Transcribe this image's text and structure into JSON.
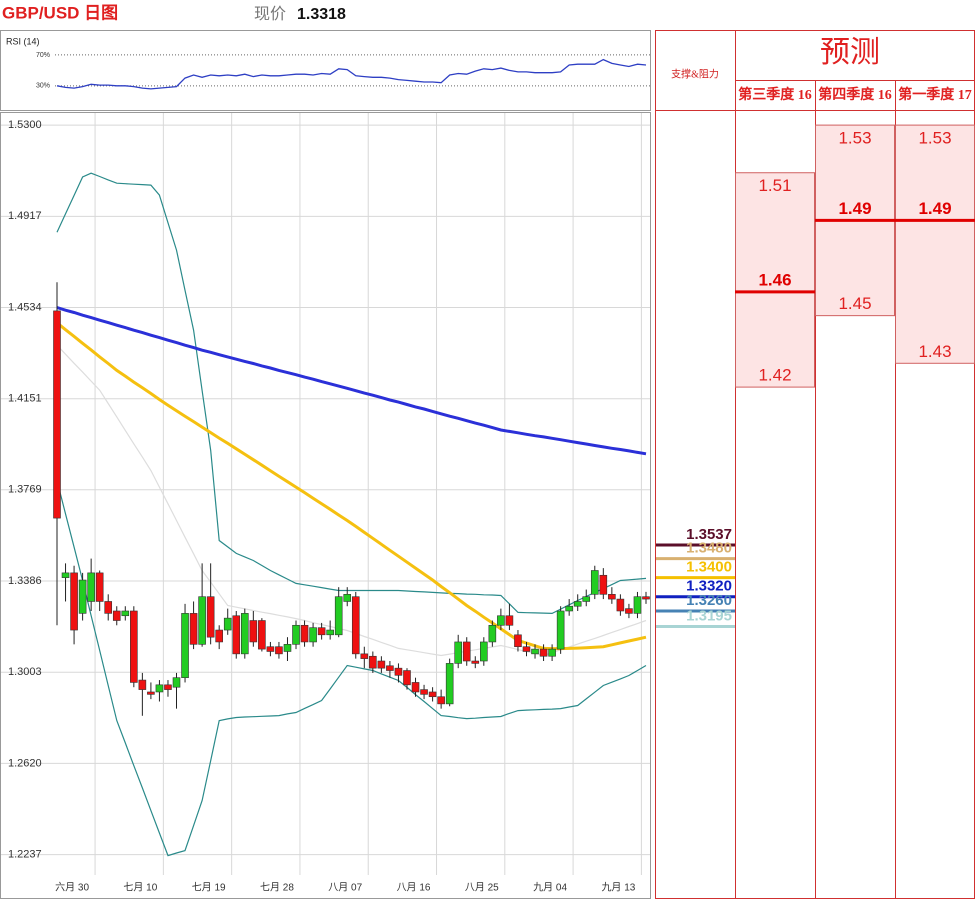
{
  "header": {
    "pair": "GBP/USD 日图",
    "price_label": "现价",
    "price": 1.3318
  },
  "chart_data": [
    {
      "type": "candlestick",
      "categories": [
        null,
        null,
        "六月 30",
        null,
        null,
        null,
        null,
        null,
        null,
        null,
        "七月 10",
        null,
        null,
        null,
        null,
        null,
        null,
        null,
        "七月 19",
        null,
        null,
        null,
        null,
        null,
        null,
        null,
        "七月 28",
        null,
        null,
        null,
        null,
        null,
        null,
        null,
        "八月 07",
        null,
        null,
        null,
        null,
        null,
        null,
        null,
        "八月 16",
        null,
        null,
        null,
        null,
        null,
        null,
        null,
        "八月 25",
        null,
        null,
        null,
        null,
        null,
        null,
        null,
        "九月 04",
        null,
        null,
        null,
        null,
        null,
        null,
        null,
        "九月 13",
        null,
        null,
        null
      ],
      "open": [
        1.452,
        1.34,
        1.342,
        1.325,
        1.33,
        1.342,
        1.33,
        1.326,
        1.324,
        1.326,
        1.297,
        1.292,
        1.292,
        1.295,
        1.294,
        1.298,
        1.325,
        1.312,
        1.332,
        1.318,
        1.318,
        1.324,
        1.308,
        1.322,
        1.322,
        1.311,
        1.311,
        1.309,
        1.312,
        1.32,
        1.313,
        1.319,
        1.316,
        1.316,
        1.33,
        1.332,
        1.308,
        1.307,
        1.305,
        1.303,
        1.302,
        1.301,
        1.296,
        1.293,
        1.292,
        1.29,
        1.287,
        1.304,
        1.313,
        1.305,
        1.305,
        1.313,
        1.32,
        1.324,
        1.316,
        1.311,
        1.308,
        1.31,
        1.307,
        1.31,
        1.326,
        1.328,
        1.33,
        1.333,
        1.341,
        1.333,
        1.331,
        1.327,
        1.325,
        1.332
      ],
      "high": [
        1.464,
        1.346,
        1.345,
        1.342,
        1.348,
        1.343,
        1.333,
        1.328,
        1.328,
        1.328,
        1.3,
        1.296,
        1.297,
        1.297,
        1.3,
        1.329,
        1.33,
        1.346,
        1.346,
        1.32,
        1.327,
        1.326,
        1.327,
        1.326,
        1.323,
        1.313,
        1.313,
        1.315,
        1.322,
        1.322,
        1.321,
        1.321,
        1.322,
        1.336,
        1.336,
        1.334,
        1.311,
        1.309,
        1.307,
        1.305,
        1.304,
        1.302,
        1.298,
        1.295,
        1.294,
        1.293,
        1.306,
        1.316,
        1.315,
        1.307,
        1.315,
        1.322,
        1.327,
        1.329,
        1.318,
        1.313,
        1.312,
        1.312,
        1.312,
        1.328,
        1.331,
        1.333,
        1.335,
        1.345,
        1.344,
        1.336,
        1.333,
        1.329,
        1.334,
        1.334
      ],
      "low": [
        1.32,
        1.33,
        1.312,
        1.322,
        1.326,
        1.326,
        1.322,
        1.32,
        1.322,
        1.294,
        1.282,
        1.289,
        1.288,
        1.29,
        1.285,
        1.296,
        1.31,
        1.311,
        1.312,
        1.31,
        1.316,
        1.306,
        1.306,
        1.311,
        1.309,
        1.307,
        1.306,
        1.305,
        1.31,
        1.311,
        1.311,
        1.314,
        1.314,
        1.315,
        1.328,
        1.306,
        1.302,
        1.3,
        1.3,
        1.298,
        1.296,
        1.293,
        1.29,
        1.289,
        1.288,
        1.285,
        1.286,
        1.302,
        1.303,
        1.302,
        1.303,
        1.311,
        1.318,
        1.318,
        1.309,
        1.307,
        1.306,
        1.305,
        1.305,
        1.308,
        1.324,
        1.326,
        1.328,
        1.331,
        1.331,
        1.329,
        1.324,
        1.323,
        1.323,
        1.329
      ],
      "close": [
        1.365,
        1.342,
        1.318,
        1.339,
        1.342,
        1.33,
        1.325,
        1.322,
        1.326,
        1.296,
        1.293,
        1.291,
        1.295,
        1.293,
        1.298,
        1.325,
        1.312,
        1.332,
        1.315,
        1.313,
        1.323,
        1.308,
        1.325,
        1.313,
        1.31,
        1.309,
        1.308,
        1.312,
        1.32,
        1.313,
        1.319,
        1.316,
        1.318,
        1.332,
        1.333,
        1.308,
        1.306,
        1.302,
        1.302,
        1.301,
        1.299,
        1.295,
        1.292,
        1.291,
        1.29,
        1.287,
        1.304,
        1.313,
        1.305,
        1.304,
        1.313,
        1.32,
        1.324,
        1.32,
        1.311,
        1.309,
        1.31,
        1.307,
        1.31,
        1.326,
        1.328,
        1.33,
        1.332,
        1.343,
        1.333,
        1.331,
        1.326,
        1.325,
        1.332,
        1.331
      ],
      "up_color": "#22cc22",
      "down_color": "#ee1111",
      "overlays": [
        {
          "color": "#dddddd",
          "values": [
            1.4376,
            1.4338,
            1.43,
            1.4263,
            1.4225,
            1.4187,
            1.4131,
            1.4075,
            1.4018,
            1.3962,
            1.3906,
            1.385,
            1.378,
            1.371,
            1.364,
            1.357,
            1.35,
            1.343,
            1.3381,
            1.3332,
            1.3283,
            1.3276,
            1.3269,
            1.3262,
            1.3255,
            1.3249,
            1.3242,
            1.3235,
            1.3228,
            1.322,
            1.3211,
            1.3203,
            1.3195,
            1.3186,
            1.3178,
            1.3166,
            1.3153,
            1.3141,
            1.3128,
            1.3116,
            1.3103,
            1.3097,
            1.3091,
            1.3085,
            1.3079,
            1.3073,
            1.3079,
            1.3085,
            1.3091,
            1.3097,
            1.3103,
            1.3109,
            1.3115,
            1.3107,
            1.3098,
            1.309,
            1.3081,
            1.3073,
            1.3085,
            1.3097,
            1.3109,
            1.3121,
            1.3133,
            1.3145,
            1.3157,
            1.317,
            1.3182,
            1.3195,
            1.3207,
            1.322
          ]
        },
        {
          "color": "#2a8a8a",
          "values": [
            1.485,
            1.4927,
            1.5005,
            1.5082,
            1.5098,
            1.5084,
            1.507,
            1.5056,
            1.5054,
            1.5052,
            1.505,
            1.5048,
            1.5006,
            1.489,
            1.4775,
            1.4607,
            1.4439,
            1.4186,
            1.3934,
            1.3556,
            1.3529,
            1.3502,
            1.3487,
            1.3472,
            1.3451,
            1.343,
            1.3412,
            1.3394,
            1.3376,
            1.337,
            1.3364,
            1.3358,
            1.3352,
            1.3346,
            1.3346,
            1.3346,
            1.3346,
            1.3346,
            1.3346,
            1.3346,
            1.3346,
            1.3344,
            1.3342,
            1.334,
            1.3338,
            1.3336,
            1.3334,
            1.3333,
            1.3331,
            1.333,
            1.3328,
            1.3327,
            1.3325,
            1.329,
            1.3254,
            1.3253,
            1.3252,
            1.3251,
            1.325,
            1.3268,
            1.3286,
            1.3304,
            1.3321,
            1.3338,
            1.3354,
            1.3371,
            1.3388,
            1.3391,
            1.3394,
            1.3397
          ]
        },
        {
          "color": "#2a8a8a",
          "values": [
            1.3808,
            1.3668,
            1.3528,
            1.3388,
            1.3241,
            1.3094,
            1.2947,
            1.28,
            1.2706,
            1.2611,
            1.2517,
            1.2422,
            1.2328,
            1.2233,
            1.2244,
            1.2254,
            1.2359,
            1.2464,
            1.2632,
            1.28,
            1.2807,
            1.2813,
            1.2815,
            1.2816,
            1.2818,
            1.2819,
            1.2821,
            1.2828,
            1.2834,
            1.2851,
            1.2867,
            1.2884,
            1.2933,
            1.2982,
            1.3031,
            1.3024,
            1.3017,
            1.301,
            1.2996,
            1.2982,
            1.2968,
            1.2939,
            1.2909,
            1.288,
            1.285,
            1.2821,
            1.2817,
            1.2812,
            1.2808,
            1.281,
            1.2813,
            1.2815,
            1.2817,
            1.283,
            1.2842,
            1.2844,
            1.2845,
            1.2847,
            1.2848,
            1.285,
            1.2857,
            1.2863,
            1.2891,
            1.2919,
            1.2947,
            1.2961,
            1.2975,
            1.2989,
            1.301,
            1.3031
          ]
        },
        {
          "color": "#f5c010",
          "values": [
            1.447,
            1.4441,
            1.4413,
            1.4384,
            1.4356,
            1.4327,
            1.4299,
            1.427,
            1.4246,
            1.4221,
            1.4197,
            1.4173,
            1.4148,
            1.4124,
            1.4101,
            1.4078,
            1.4055,
            1.4032,
            1.4009,
            1.3986,
            1.3964,
            1.3941,
            1.3918,
            1.3895,
            1.3872,
            1.3849,
            1.3826,
            1.3803,
            1.378,
            1.3757,
            1.3733,
            1.371,
            1.3687,
            1.3663,
            1.364,
            1.3615,
            1.359,
            1.3565,
            1.354,
            1.3515,
            1.349,
            1.3465,
            1.344,
            1.3415,
            1.339,
            1.3363,
            1.3337,
            1.331,
            1.3283,
            1.3259,
            1.3234,
            1.321,
            1.3185,
            1.3161,
            1.3136,
            1.3125,
            1.3114,
            1.3103,
            1.3102,
            1.3102,
            1.3103,
            1.3104,
            1.3106,
            1.3108,
            1.311,
            1.3118,
            1.3126,
            1.3134,
            1.3142,
            1.315
          ]
        },
        {
          "color": "#2b30d8",
          "values": [
            1.4534,
            1.4523,
            1.4513,
            1.4502,
            1.4492,
            1.4481,
            1.4471,
            1.446,
            1.445,
            1.4439,
            1.4429,
            1.4418,
            1.4408,
            1.4397,
            1.4387,
            1.4376,
            1.4366,
            1.4355,
            1.4346,
            1.4336,
            1.4327,
            1.4317,
            1.4308,
            1.4299,
            1.4289,
            1.428,
            1.427,
            1.4261,
            1.4252,
            1.4242,
            1.4233,
            1.4223,
            1.4214,
            1.4204,
            1.4195,
            1.4185,
            1.4175,
            1.4166,
            1.4156,
            1.4146,
            1.4137,
            1.4127,
            1.4117,
            1.4108,
            1.4098,
            1.4088,
            1.4078,
            1.4069,
            1.4059,
            1.4049,
            1.404,
            1.403,
            1.402,
            1.4014,
            1.4008,
            1.4002,
            1.3996,
            1.3991,
            1.3985,
            1.3979,
            1.3973,
            1.3967,
            1.3961,
            1.3955,
            1.3949,
            1.3943,
            1.3938,
            1.3932,
            1.3926,
            1.392
          ]
        }
      ],
      "ylim": [
        1.2055,
        1.5355
      ],
      "yticks": [
        {
          "value": 1.53,
          "label": "1.5300"
        },
        1.4917,
        1.4534,
        1.4151,
        1.3769,
        1.3386,
        1.3003,
        {
          "value": 1.262,
          "label": "1.2620"
        },
        1.2237
      ],
      "grid": true,
      "levels_title": "支撑&阻力",
      "levels": [
        {
          "value": 1.3537,
          "color": "#5b0f2a"
        },
        {
          "value": 1.348,
          "label": "1.3480",
          "color": "#d8b070"
        },
        {
          "value": 1.34,
          "label": "1.3400",
          "color": "#f5c000"
        },
        {
          "value": 1.332,
          "label": "1.3320",
          "color": "#1020c0"
        },
        {
          "value": 1.326,
          "label": "1.3260",
          "color": "#4682b4"
        },
        {
          "value": 1.3195,
          "color": "#a8d4d4"
        }
      ]
    },
    {
      "type": "line",
      "title": "RSI (14)",
      "color": "#2e3fc4",
      "values": [
        30,
        28,
        27,
        29,
        32,
        31,
        31,
        30,
        30,
        29,
        27,
        26,
        27,
        28,
        29,
        40,
        44,
        41,
        44,
        43,
        44,
        43,
        45,
        42,
        44,
        43,
        43,
        44,
        45,
        45,
        44,
        46,
        45,
        52,
        51,
        43,
        42,
        41,
        41,
        40,
        38,
        37,
        36,
        35,
        35,
        34,
        44,
        46,
        45,
        49,
        52,
        51,
        53,
        50,
        48,
        48,
        47,
        47,
        47,
        48,
        57,
        58,
        58,
        58,
        64,
        59,
        57,
        55,
        58,
        57
      ],
      "ylim": [
        0,
        100
      ],
      "yticks": [
        {
          "value": 70,
          "label": "70%"
        },
        {
          "value": 30,
          "label": "30%"
        }
      ]
    },
    {
      "type": "range",
      "title": "预测",
      "categories": [
        "第三季度 16",
        "第四季度 16",
        "第一季度 17"
      ],
      "high": [
        1.51,
        1.53,
        1.53
      ],
      "mid": [
        1.46,
        1.49,
        1.49
      ],
      "low": [
        1.42,
        1.45,
        1.43
      ],
      "ylim": [
        1.2055,
        1.5355
      ]
    }
  ]
}
